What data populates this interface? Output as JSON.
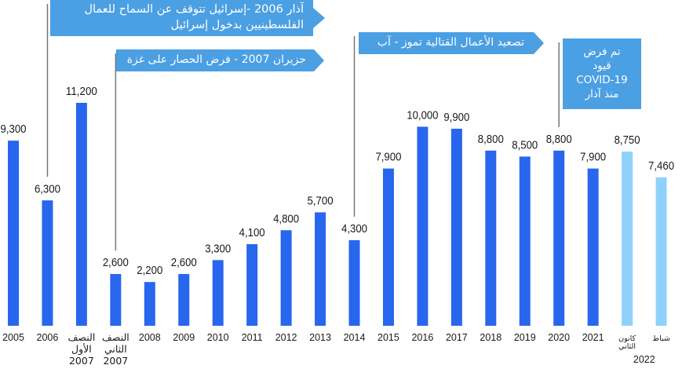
{
  "chart_data": {
    "type": "bar",
    "series": [
      {
        "name": "main",
        "color": "#2866ee"
      },
      {
        "name": "2022",
        "color": "#8ed2fb"
      }
    ],
    "bars": [
      {
        "label": [
          "2005"
        ],
        "value": 9300,
        "value_label": "9,300",
        "series": 0
      },
      {
        "label": [
          "2006"
        ],
        "value": 6300,
        "value_label": "6,300",
        "series": 0
      },
      {
        "label": [
          "النصف",
          "الأول",
          "2007"
        ],
        "value": 11200,
        "value_label": "11,200",
        "series": 0
      },
      {
        "label": [
          "النصف",
          "الثاني",
          "2007"
        ],
        "value": 2600,
        "value_label": "2,600",
        "series": 0
      },
      {
        "label": [
          "2008"
        ],
        "value": 2200,
        "value_label": "2,200",
        "series": 0
      },
      {
        "label": [
          "2009"
        ],
        "value": 2600,
        "value_label": "2,600",
        "series": 0
      },
      {
        "label": [
          "2010"
        ],
        "value": 3300,
        "value_label": "3,300",
        "series": 0
      },
      {
        "label": [
          "2011"
        ],
        "value": 4100,
        "value_label": "4,100",
        "series": 0
      },
      {
        "label": [
          "2012"
        ],
        "value": 4800,
        "value_label": "4,800",
        "series": 0
      },
      {
        "label": [
          "2013"
        ],
        "value": 5700,
        "value_label": "5,700",
        "series": 0
      },
      {
        "label": [
          "2014"
        ],
        "value": 4300,
        "value_label": "4,300",
        "series": 0
      },
      {
        "label": [
          "2015"
        ],
        "value": 7900,
        "value_label": "7,900",
        "series": 0
      },
      {
        "label": [
          "2016"
        ],
        "value": 10000,
        "value_label": "10,000",
        "series": 0
      },
      {
        "label": [
          "2017"
        ],
        "value": 9900,
        "value_label": "9,900",
        "series": 0
      },
      {
        "label": [
          "2018"
        ],
        "value": 8800,
        "value_label": "8,800",
        "series": 0
      },
      {
        "label": [
          "2019"
        ],
        "value": 8500,
        "value_label": "8,500",
        "series": 0
      },
      {
        "label": [
          "2020"
        ],
        "value": 8800,
        "value_label": "8,800",
        "series": 0
      },
      {
        "label": [
          "2021"
        ],
        "value": 7900,
        "value_label": "7,900",
        "series": 0
      },
      {
        "label": [
          "كانون",
          "الثاني"
        ],
        "value": 8750,
        "value_label": "8,750",
        "series": 1
      },
      {
        "label": [
          "شباط"
        ],
        "value": 7460,
        "value_label": "7,460",
        "series": 1
      }
    ],
    "group_label": "2022",
    "ylim": [
      0,
      11200
    ],
    "title": "",
    "xlabel": "",
    "ylabel": "",
    "grid": false,
    "annotations": [
      {
        "lines": [
          "آذار 2006 -إسرائيل تتوقف عن السماح للعمال",
          "الفلسطينيين بدخول إسرائيل"
        ],
        "bar_index": 1
      },
      {
        "lines": [
          "حزيران 2007 - فرض الحصار على غزة"
        ],
        "bar_index": 3
      },
      {
        "lines": [
          "تصعيد الأعمال القتالية تموز - آب"
        ],
        "bar_index": 10
      },
      {
        "lines": [
          "تم فرض",
          "قيود",
          "COVID-19",
          "منذ آذار"
        ],
        "bar_index": 16
      }
    ],
    "annotation_color": "#4b9fe3"
  }
}
